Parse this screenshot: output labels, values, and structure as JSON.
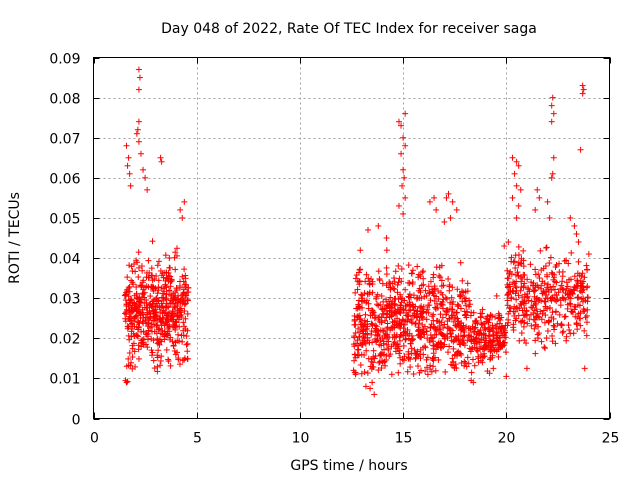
{
  "chart_data": {
    "type": "scatter",
    "title": "Day 048 of 2022, Rate Of TEC Index for receiver saga",
    "xlabel": "GPS time / hours",
    "ylabel": "ROTI / TECUs",
    "xlim": [
      0,
      25
    ],
    "ylim": [
      0,
      0.09
    ],
    "xticks": [
      "0",
      "5",
      "10",
      "15",
      "20",
      "25"
    ],
    "yticks": [
      "0",
      "0.01",
      "0.02",
      "0.03",
      "0.04",
      "0.05",
      "0.06",
      "0.07",
      "0.08",
      "0.09"
    ],
    "grid": true,
    "marker": "+",
    "color": "#ff0000",
    "clusters": [
      {
        "x_range": [
          1.5,
          4.6
        ],
        "count": 520,
        "y_range": [
          0.011,
          0.05
        ],
        "mode": 0.027
      },
      {
        "x_range": [
          12.6,
          18.2
        ],
        "count": 760,
        "y_range": [
          0.011,
          0.05
        ],
        "mode": 0.024
      },
      {
        "x_range": [
          18.2,
          20.0
        ],
        "count": 200,
        "y_range": [
          0.01,
          0.032
        ],
        "mode": 0.02
      },
      {
        "x_range": [
          20.0,
          24.0
        ],
        "count": 380,
        "y_range": [
          0.012,
          0.047
        ],
        "mode": 0.03
      }
    ],
    "points": [
      {
        "x": 1.55,
        "y": 0.0095
      },
      {
        "x": 1.6,
        "y": 0.009
      },
      {
        "x": 1.65,
        "y": 0.0092
      },
      {
        "x": 2.2,
        "y": 0.087
      },
      {
        "x": 2.25,
        "y": 0.085
      },
      {
        "x": 2.2,
        "y": 0.082
      },
      {
        "x": 2.2,
        "y": 0.074
      },
      {
        "x": 2.15,
        "y": 0.072
      },
      {
        "x": 2.1,
        "y": 0.071
      },
      {
        "x": 2.2,
        "y": 0.069
      },
      {
        "x": 1.6,
        "y": 0.068
      },
      {
        "x": 1.7,
        "y": 0.065
      },
      {
        "x": 1.65,
        "y": 0.063
      },
      {
        "x": 1.75,
        "y": 0.061
      },
      {
        "x": 2.3,
        "y": 0.066
      },
      {
        "x": 2.4,
        "y": 0.062
      },
      {
        "x": 2.5,
        "y": 0.06
      },
      {
        "x": 3.25,
        "y": 0.065
      },
      {
        "x": 3.3,
        "y": 0.064
      },
      {
        "x": 2.6,
        "y": 0.057
      },
      {
        "x": 1.8,
        "y": 0.058
      },
      {
        "x": 4.2,
        "y": 0.052
      },
      {
        "x": 4.4,
        "y": 0.054
      },
      {
        "x": 4.3,
        "y": 0.05
      },
      {
        "x": 14.8,
        "y": 0.074
      },
      {
        "x": 14.9,
        "y": 0.073
      },
      {
        "x": 15.1,
        "y": 0.076
      },
      {
        "x": 15.0,
        "y": 0.07
      },
      {
        "x": 15.1,
        "y": 0.068
      },
      {
        "x": 14.9,
        "y": 0.066
      },
      {
        "x": 15.0,
        "y": 0.062
      },
      {
        "x": 15.05,
        "y": 0.06
      },
      {
        "x": 14.95,
        "y": 0.058
      },
      {
        "x": 15.1,
        "y": 0.055
      },
      {
        "x": 14.8,
        "y": 0.053
      },
      {
        "x": 15.0,
        "y": 0.051
      },
      {
        "x": 16.3,
        "y": 0.054
      },
      {
        "x": 16.5,
        "y": 0.055
      },
      {
        "x": 16.6,
        "y": 0.052
      },
      {
        "x": 17.1,
        "y": 0.055
      },
      {
        "x": 17.2,
        "y": 0.056
      },
      {
        "x": 17.4,
        "y": 0.054
      },
      {
        "x": 17.6,
        "y": 0.052
      },
      {
        "x": 17.3,
        "y": 0.05
      },
      {
        "x": 17.0,
        "y": 0.049
      },
      {
        "x": 13.3,
        "y": 0.047
      },
      {
        "x": 13.8,
        "y": 0.048
      },
      {
        "x": 14.2,
        "y": 0.045
      },
      {
        "x": 13.2,
        "y": 0.008
      },
      {
        "x": 13.4,
        "y": 0.0075
      },
      {
        "x": 13.6,
        "y": 0.006
      },
      {
        "x": 13.5,
        "y": 0.009
      },
      {
        "x": 18.3,
        "y": 0.0095
      },
      {
        "x": 18.4,
        "y": 0.009
      },
      {
        "x": 12.7,
        "y": 0.011
      },
      {
        "x": 12.6,
        "y": 0.012
      },
      {
        "x": 16.2,
        "y": 0.011
      },
      {
        "x": 20.3,
        "y": 0.065
      },
      {
        "x": 20.5,
        "y": 0.064
      },
      {
        "x": 20.6,
        "y": 0.063
      },
      {
        "x": 20.4,
        "y": 0.061
      },
      {
        "x": 20.5,
        "y": 0.058
      },
      {
        "x": 20.7,
        "y": 0.057
      },
      {
        "x": 20.3,
        "y": 0.055
      },
      {
        "x": 20.6,
        "y": 0.053
      },
      {
        "x": 20.5,
        "y": 0.05
      },
      {
        "x": 21.5,
        "y": 0.057
      },
      {
        "x": 21.6,
        "y": 0.055
      },
      {
        "x": 21.4,
        "y": 0.052
      },
      {
        "x": 22.0,
        "y": 0.054
      },
      {
        "x": 22.1,
        "y": 0.05
      },
      {
        "x": 22.2,
        "y": 0.06
      },
      {
        "x": 22.25,
        "y": 0.061
      },
      {
        "x": 22.3,
        "y": 0.065
      },
      {
        "x": 22.2,
        "y": 0.078
      },
      {
        "x": 22.25,
        "y": 0.08
      },
      {
        "x": 22.3,
        "y": 0.076
      },
      {
        "x": 22.2,
        "y": 0.074
      },
      {
        "x": 23.7,
        "y": 0.083
      },
      {
        "x": 23.75,
        "y": 0.082
      },
      {
        "x": 23.7,
        "y": 0.081
      },
      {
        "x": 23.6,
        "y": 0.067
      },
      {
        "x": 23.1,
        "y": 0.05
      },
      {
        "x": 23.3,
        "y": 0.048
      },
      {
        "x": 23.4,
        "y": 0.046
      },
      {
        "x": 23.5,
        "y": 0.044
      },
      {
        "x": 20.0,
        "y": 0.0105
      },
      {
        "x": 21.0,
        "y": 0.0125
      },
      {
        "x": 23.8,
        "y": 0.0125
      },
      {
        "x": 24.0,
        "y": 0.041
      },
      {
        "x": 20.1,
        "y": 0.044
      },
      {
        "x": 19.9,
        "y": 0.043
      }
    ]
  }
}
